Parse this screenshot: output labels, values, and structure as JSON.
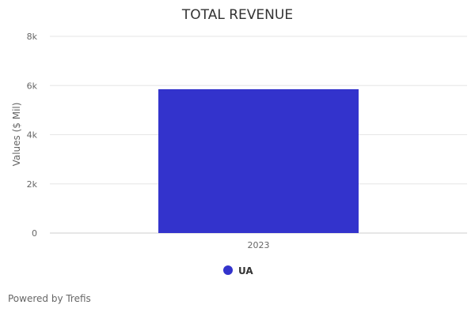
{
  "chart_data": {
    "type": "bar",
    "title": "TOTAL REVENUE",
    "xlabel": "",
    "ylabel": "Values ($ Mil)",
    "categories": [
      "2023"
    ],
    "series": [
      {
        "name": "UA",
        "values": [
          5850
        ]
      }
    ],
    "ylim": [
      0,
      8000
    ],
    "yticks": [
      {
        "value": 0,
        "label": "0"
      },
      {
        "value": 2000,
        "label": "2k"
      },
      {
        "value": 4000,
        "label": "4k"
      },
      {
        "value": 6000,
        "label": "6k"
      },
      {
        "value": 8000,
        "label": "8k"
      }
    ],
    "grid": true,
    "legend_position": "bottom-center",
    "colors": {
      "bar": "#3333cc",
      "grid": "#e6e6e6",
      "axis": "#cccccc"
    }
  },
  "credit": "Powered by Trefis"
}
